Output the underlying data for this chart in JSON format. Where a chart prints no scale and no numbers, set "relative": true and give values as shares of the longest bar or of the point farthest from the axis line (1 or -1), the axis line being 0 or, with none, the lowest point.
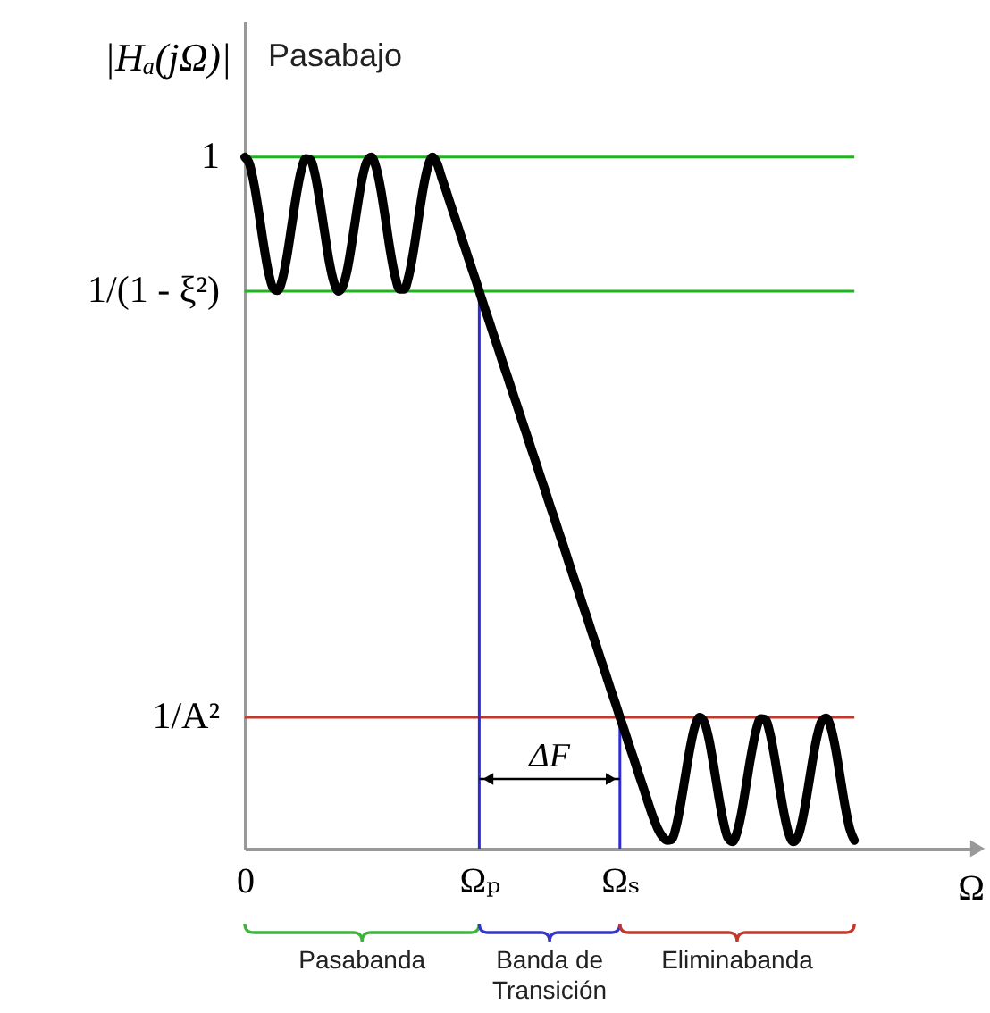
{
  "chart_data": {
    "type": "line",
    "title": "Pasabajo",
    "xlabel": "Ω",
    "ylabel": "|Hₐ(jΩ)|",
    "relative": true,
    "line_style": "solid",
    "categories": [
      "0",
      null,
      null,
      null,
      null,
      null,
      null,
      null,
      null,
      null,
      null,
      null,
      null,
      null,
      null,
      null,
      null,
      null,
      null,
      null,
      null,
      null,
      null,
      null,
      null,
      null,
      null,
      null,
      null,
      null,
      null,
      null,
      null,
      null,
      null,
      null,
      null,
      null,
      null,
      null,
      null,
      null,
      null,
      null,
      null,
      null,
      null,
      null,
      null,
      null,
      "Ωₚ",
      null,
      null,
      null,
      null,
      null,
      null,
      null,
      null,
      null,
      null,
      null,
      null,
      null,
      null,
      null,
      null,
      null,
      null,
      null,
      null,
      null,
      null,
      null,
      null,
      null,
      null,
      null,
      null,
      null,
      "Ωₛ",
      null,
      null,
      null,
      null,
      null,
      null,
      null,
      null,
      null,
      null,
      null,
      null,
      null,
      null,
      null,
      null,
      null,
      null,
      null,
      null,
      null,
      null,
      null,
      null,
      null,
      null,
      null,
      null,
      null,
      null,
      null,
      null,
      null,
      null,
      null,
      null,
      null,
      null,
      null,
      null,
      null,
      null,
      null,
      null,
      null,
      null,
      null,
      null,
      null,
      null
    ],
    "series": [
      {
        "color": "#000000",
        "values": [
          1.0,
          0.99,
          0.96,
          0.919,
          0.874,
          0.835,
          0.811,
          0.807,
          0.823,
          0.857,
          0.901,
          0.945,
          0.98,
          0.998,
          0.996,
          0.974,
          0.936,
          0.892,
          0.849,
          0.819,
          0.806,
          0.815,
          0.842,
          0.883,
          0.928,
          0.968,
          0.993,
          1.0,
          0.985,
          0.953,
          0.91,
          0.865,
          0.829,
          0.809,
          0.809,
          0.829,
          0.865,
          0.91,
          0.953,
          0.985,
          1.0,
          0.991,
          0.97,
          0.95,
          0.929,
          0.909,
          0.888,
          0.868,
          0.847,
          0.827,
          0.806,
          0.785,
          0.765,
          0.744,
          0.724,
          0.703,
          0.683,
          0.662,
          0.642,
          0.621,
          0.601,
          0.58,
          0.56,
          0.539,
          0.519,
          0.498,
          0.478,
          0.457,
          0.437,
          0.416,
          0.395,
          0.375,
          0.354,
          0.334,
          0.313,
          0.293,
          0.272,
          0.252,
          0.231,
          0.211,
          0.19,
          0.17,
          0.149,
          0.129,
          0.108,
          0.088,
          0.067,
          0.047,
          0.03,
          0.018,
          0.012,
          0.013,
          0.032,
          0.066,
          0.107,
          0.147,
          0.177,
          0.19,
          0.183,
          0.158,
          0.12,
          0.078,
          0.041,
          0.016,
          0.01,
          0.024,
          0.054,
          0.095,
          0.136,
          0.17,
          0.188,
          0.187,
          0.167,
          0.132,
          0.09,
          0.051,
          0.022,
          0.01,
          0.018,
          0.044,
          0.082,
          0.124,
          0.161,
          0.184,
          0.189,
          0.175,
          0.144,
          0.103,
          0.062,
          0.029,
          0.012
        ]
      }
    ],
    "ref_lines": [
      {
        "axis": "y",
        "value": 1,
        "label": "1",
        "color": "#1fb41f"
      },
      {
        "axis": "y",
        "value": 0.806,
        "label": "1/(1 - ξ²)",
        "color": "#1fb41f"
      },
      {
        "axis": "y",
        "value": 0.19,
        "label": "1/A²",
        "color": "#c0392b"
      },
      {
        "axis": "x",
        "value": "Ωₚ",
        "color": "#2c2cd6"
      },
      {
        "axis": "x",
        "value": "Ωₛ",
        "color": "#2c2cd6"
      }
    ],
    "annotations": [
      "Pasabanda",
      "Banda de Transición",
      "Eliminabanda",
      "ΔF"
    ]
  }
}
